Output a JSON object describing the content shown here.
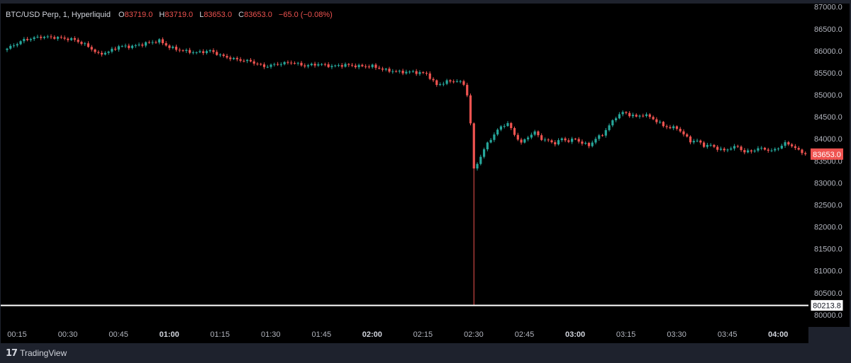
{
  "legend": {
    "symbol": "BTC/USD Perp, 1, Hyperliquid",
    "open_label": "O",
    "open_value": "83719.0",
    "high_label": "H",
    "high_value": "83719.0",
    "low_label": "L",
    "low_value": "83653.0",
    "close_label": "C",
    "close_value": "83653.0",
    "change": "−65.0 (−0.08%)"
  },
  "branding": {
    "logo_mark": "17",
    "logo_text": "TradingView"
  },
  "colors": {
    "background": "#000000",
    "frame": "#1e222d",
    "up": "#26a69a",
    "down": "#ef5350",
    "text": "#b2b5be",
    "hline": "#ffffff",
    "last_price_bg": "#ef5350"
  },
  "chart_data": {
    "type": "candlestick",
    "title": "BTC/USD Perp, 1, Hyperliquid",
    "interval": "1",
    "ylim": [
      79725,
      87075
    ],
    "y_ticks": [
      "87000.0",
      "86500.0",
      "86000.0",
      "85500.0",
      "85000.0",
      "84500.0",
      "84000.0",
      "83500.0",
      "83000.0",
      "82500.0",
      "82000.0",
      "81500.0",
      "81000.0",
      "80500.0",
      "80000.0"
    ],
    "x_ticks": [
      {
        "label": "00:15",
        "index": 0,
        "bold": false
      },
      {
        "label": "00:30",
        "index": 15,
        "bold": false
      },
      {
        "label": "00:45",
        "index": 30,
        "bold": false
      },
      {
        "label": "01:00",
        "index": 45,
        "bold": true
      },
      {
        "label": "01:15",
        "index": 60,
        "bold": false
      },
      {
        "label": "01:30",
        "index": 75,
        "bold": false
      },
      {
        "label": "01:45",
        "index": 90,
        "bold": false
      },
      {
        "label": "02:00",
        "index": 105,
        "bold": true
      },
      {
        "label": "02:15",
        "index": 120,
        "bold": false
      },
      {
        "label": "02:30",
        "index": 135,
        "bold": false
      },
      {
        "label": "02:45",
        "index": 150,
        "bold": false
      },
      {
        "label": "03:00",
        "index": 165,
        "bold": true
      },
      {
        "label": "03:15",
        "index": 180,
        "bold": false
      },
      {
        "label": "03:30",
        "index": 195,
        "bold": false
      },
      {
        "label": "03:45",
        "index": 210,
        "bold": false
      },
      {
        "label": "04:00",
        "index": 225,
        "bold": true
      }
    ],
    "last_price": "83653.0",
    "horizontal_line": {
      "value": 80213.8,
      "label": "80213.8"
    },
    "close_path": [
      [
        0,
        86050
      ],
      [
        5,
        86250
      ],
      [
        10,
        86320
      ],
      [
        15,
        86300
      ],
      [
        20,
        86250
      ],
      [
        24,
        86100
      ],
      [
        27,
        85920
      ],
      [
        30,
        85980
      ],
      [
        33,
        86100
      ],
      [
        37,
        86100
      ],
      [
        41,
        86170
      ],
      [
        45,
        86230
      ],
      [
        48,
        86080
      ],
      [
        52,
        86000
      ],
      [
        56,
        85960
      ],
      [
        60,
        86000
      ],
      [
        64,
        85870
      ],
      [
        68,
        85800
      ],
      [
        72,
        85760
      ],
      [
        76,
        85640
      ],
      [
        80,
        85700
      ],
      [
        84,
        85740
      ],
      [
        88,
        85660
      ],
      [
        92,
        85700
      ],
      [
        96,
        85650
      ],
      [
        100,
        85680
      ],
      [
        104,
        85650
      ],
      [
        108,
        85650
      ],
      [
        112,
        85560
      ],
      [
        116,
        85520
      ],
      [
        120,
        85520
      ],
      [
        124,
        85480
      ],
      [
        127,
        85220
      ],
      [
        130,
        85300
      ],
      [
        133,
        85320
      ],
      [
        135,
        85240
      ],
      [
        136,
        85000
      ],
      [
        137,
        84350
      ],
      [
        138,
        83300
      ],
      [
        140,
        83600
      ],
      [
        142,
        83900
      ],
      [
        144,
        84100
      ],
      [
        146,
        84280
      ],
      [
        148,
        84350
      ],
      [
        150,
        84100
      ],
      [
        152,
        83900
      ],
      [
        154,
        84050
      ],
      [
        156,
        84150
      ],
      [
        158,
        84000
      ],
      [
        160,
        83950
      ],
      [
        162,
        83900
      ],
      [
        164,
        84000
      ],
      [
        166,
        83950
      ],
      [
        168,
        84000
      ],
      [
        170,
        83900
      ],
      [
        172,
        83850
      ],
      [
        174,
        84000
      ],
      [
        176,
        84100
      ],
      [
        178,
        84300
      ],
      [
        180,
        84500
      ],
      [
        182,
        84600
      ],
      [
        184,
        84550
      ],
      [
        186,
        84500
      ],
      [
        188,
        84550
      ],
      [
        190,
        84500
      ],
      [
        192,
        84400
      ],
      [
        194,
        84300
      ],
      [
        196,
        84250
      ],
      [
        198,
        84250
      ],
      [
        200,
        84100
      ],
      [
        202,
        83950
      ],
      [
        204,
        83950
      ],
      [
        206,
        83850
      ],
      [
        208,
        83850
      ],
      [
        210,
        83780
      ],
      [
        212,
        83730
      ],
      [
        214,
        83800
      ],
      [
        216,
        83820
      ],
      [
        218,
        83700
      ],
      [
        220,
        83720
      ],
      [
        222,
        83780
      ],
      [
        224,
        83770
      ],
      [
        226,
        83720
      ],
      [
        228,
        83800
      ],
      [
        230,
        83900
      ],
      [
        232,
        83850
      ],
      [
        234,
        83730
      ],
      [
        236,
        83653
      ]
    ],
    "spike_low": {
      "index": 138,
      "low": 80213.8
    }
  }
}
